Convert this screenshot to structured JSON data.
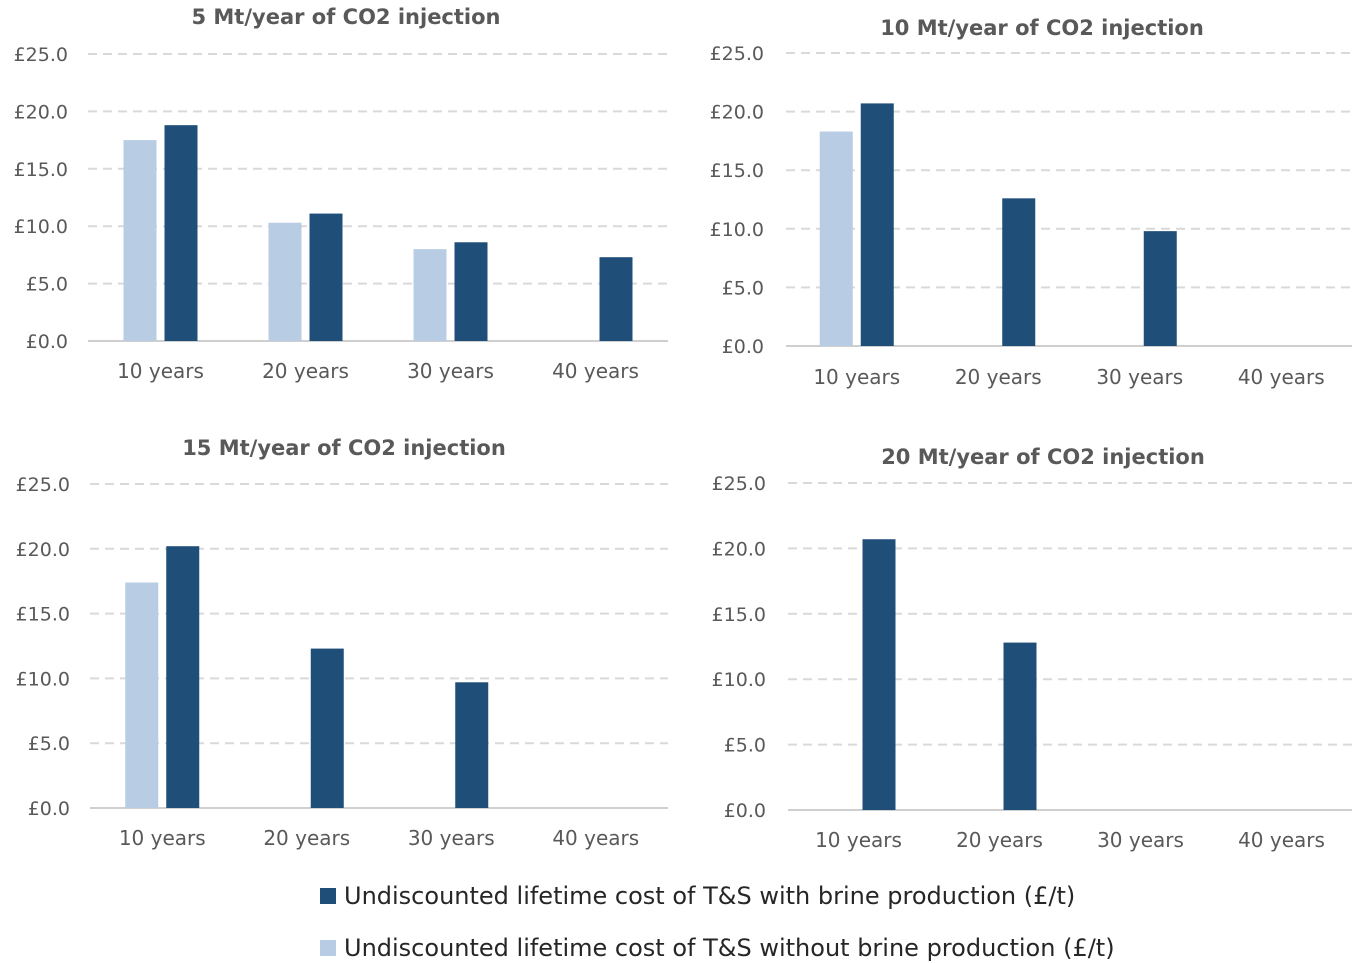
{
  "colors": {
    "with_brine": "#1F4E79",
    "without_brine": "#B8CCE4",
    "grid": "#D9D9D9",
    "axis": "#BFBFBF",
    "title": "#595959",
    "tick": "#595959"
  },
  "legend": {
    "with_brine": "Undiscounted lifetime cost of T&S with brine production (£/t)",
    "without_brine": "Undiscounted lifetime cost of T&S without brine production (£/t)"
  },
  "chart_data": [
    {
      "type": "bar",
      "title": "5 Mt/year of CO2 injection",
      "categories": [
        "10 years",
        "20 years",
        "30 years",
        "40 years"
      ],
      "yticks": [
        "£0.0",
        "£5.0",
        "£10.0",
        "£15.0",
        "£20.0",
        "£25.0"
      ],
      "ylim": [
        0,
        25
      ],
      "grid": true,
      "series": [
        {
          "name": "Undiscounted lifetime cost of T&S without brine production (£/t)",
          "values": [
            17.5,
            10.3,
            8.0,
            null
          ]
        },
        {
          "name": "Undiscounted lifetime cost of T&S with brine production (£/t)",
          "values": [
            18.8,
            11.1,
            8.6,
            7.3
          ]
        }
      ]
    },
    {
      "type": "bar",
      "title": "10 Mt/year of CO2 injection",
      "categories": [
        "10 years",
        "20 years",
        "30 years",
        "40 years"
      ],
      "yticks": [
        "£0.0",
        "£5.0",
        "£10.0",
        "£15.0",
        "£20.0",
        "£25.0"
      ],
      "ylim": [
        0,
        25
      ],
      "grid": true,
      "series": [
        {
          "name": "Undiscounted lifetime cost of T&S without brine production (£/t)",
          "values": [
            18.3,
            null,
            null,
            null
          ]
        },
        {
          "name": "Undiscounted lifetime cost of T&S with brine production (£/t)",
          "values": [
            20.7,
            12.6,
            9.8,
            null
          ]
        }
      ]
    },
    {
      "type": "bar",
      "title": "15 Mt/year of CO2 injection",
      "categories": [
        "10 years",
        "20 years",
        "30 years",
        "40 years"
      ],
      "yticks": [
        "£0.0",
        "£5.0",
        "£10.0",
        "£15.0",
        "£20.0",
        "£25.0"
      ],
      "ylim": [
        0,
        25
      ],
      "grid": true,
      "series": [
        {
          "name": "Undiscounted lifetime cost of T&S without brine production (£/t)",
          "values": [
            17.4,
            null,
            null,
            null
          ]
        },
        {
          "name": "Undiscounted lifetime cost of T&S with brine production (£/t)",
          "values": [
            20.2,
            12.3,
            9.7,
            null
          ]
        }
      ]
    },
    {
      "type": "bar",
      "title": "20 Mt/year of CO2 injection",
      "categories": [
        "10 years",
        "20 years",
        "30 years",
        "40 years"
      ],
      "yticks": [
        "£0.0",
        "£5.0",
        "£10.0",
        "£15.0",
        "£20.0",
        "£25.0"
      ],
      "ylim": [
        0,
        25
      ],
      "grid": true,
      "series": [
        {
          "name": "Undiscounted lifetime cost of T&S without brine production (£/t)",
          "values": [
            null,
            null,
            null,
            null
          ]
        },
        {
          "name": "Undiscounted lifetime cost of T&S with brine production (£/t)",
          "values": [
            20.7,
            12.8,
            null,
            null
          ]
        }
      ]
    }
  ]
}
